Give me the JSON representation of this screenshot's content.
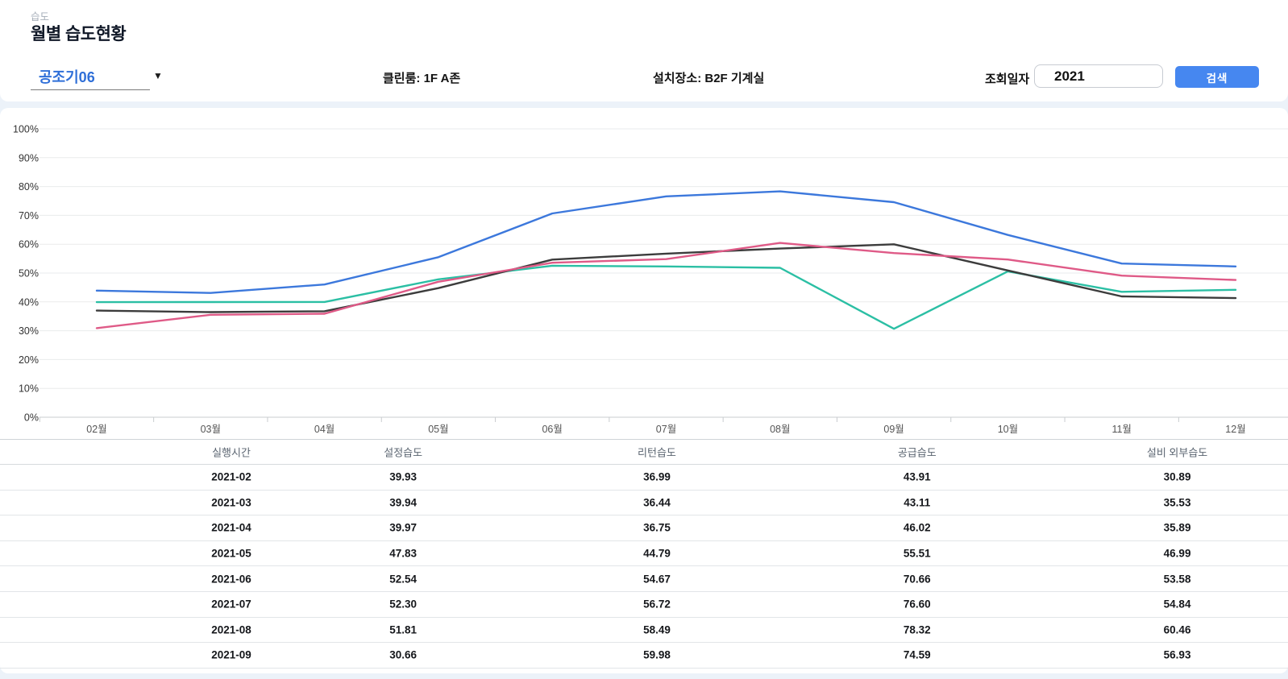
{
  "header": {
    "subtitle": "습도",
    "title": "월별 습도현황"
  },
  "filters": {
    "device_select": {
      "value": "공조기06"
    },
    "cleanroom_info": "클린룸: 1F A존",
    "location_info": "설치장소: B2F 기계실",
    "query_date_label": "조회일자",
    "year_input": {
      "value": "2021"
    },
    "search_button_label": "검색"
  },
  "colors": {
    "accent_blue": "#4687F0",
    "dropdown_text": "#2F6FD8",
    "page_background": "#ECF2F9"
  },
  "chart_data": {
    "type": "line",
    "title": "",
    "xlabel": "",
    "ylabel": "",
    "x": [
      "02월",
      "03월",
      "04월",
      "05월",
      "06월",
      "07월",
      "08월",
      "09월",
      "10월",
      "11월",
      "12월"
    ],
    "series": [
      {
        "name": "설정습도",
        "color": "#2BBFA4",
        "values": [
          39.93,
          39.94,
          39.97,
          47.83,
          52.54,
          52.3,
          51.81,
          30.66,
          50.6,
          43.5,
          44.2
        ]
      },
      {
        "name": "리턴습도",
        "color": "#3C3C3C",
        "values": [
          36.99,
          36.44,
          36.75,
          44.79,
          54.67,
          56.72,
          58.49,
          59.98,
          50.9,
          41.9,
          41.3
        ]
      },
      {
        "name": "공급습도",
        "color": "#3C78DC",
        "values": [
          43.91,
          43.11,
          46.02,
          55.51,
          70.66,
          76.6,
          78.32,
          74.59,
          63.2,
          53.3,
          52.3
        ]
      },
      {
        "name": "설비 외부습도",
        "color": "#DF5A87",
        "values": [
          30.89,
          35.53,
          35.89,
          46.99,
          53.58,
          54.84,
          60.46,
          56.93,
          54.7,
          49.1,
          47.6
        ]
      }
    ],
    "ylim": [
      0,
      100
    ],
    "yticks": [
      0,
      10,
      20,
      30,
      40,
      50,
      60,
      70,
      80,
      90,
      100
    ],
    "ytick_labels": [
      "0%",
      "10%",
      "20%",
      "30%",
      "40%",
      "50%",
      "60%",
      "70%",
      "80%",
      "90%",
      "100%"
    ],
    "grid": true,
    "legend": "none"
  },
  "table": {
    "columns": [
      "실행시간",
      "설정습도",
      "리턴습도",
      "공급습도",
      "설비 외부습도"
    ],
    "rows": [
      [
        "2021-02",
        "39.93",
        "36.99",
        "43.91",
        "30.89"
      ],
      [
        "2021-03",
        "39.94",
        "36.44",
        "43.11",
        "35.53"
      ],
      [
        "2021-04",
        "39.97",
        "36.75",
        "46.02",
        "35.89"
      ],
      [
        "2021-05",
        "47.83",
        "44.79",
        "55.51",
        "46.99"
      ],
      [
        "2021-06",
        "52.54",
        "54.67",
        "70.66",
        "53.58"
      ],
      [
        "2021-07",
        "52.30",
        "56.72",
        "76.60",
        "54.84"
      ],
      [
        "2021-08",
        "51.81",
        "58.49",
        "78.32",
        "60.46"
      ],
      [
        "2021-09",
        "30.66",
        "59.98",
        "74.59",
        "56.93"
      ]
    ]
  }
}
